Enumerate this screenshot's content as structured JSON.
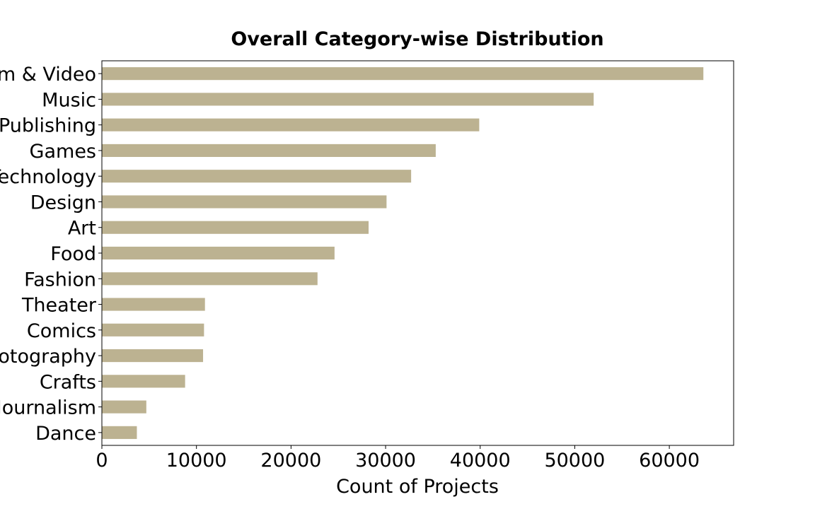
{
  "chart_data": {
    "type": "bar",
    "orientation": "horizontal",
    "title": "Overall Category-wise Distribution",
    "xlabel": "Count of Projects",
    "ylabel": "",
    "categories": [
      "Film & Video",
      "Music",
      "Publishing",
      "Games",
      "Technology",
      "Design",
      "Art",
      "Food",
      "Fashion",
      "Theater",
      "Comics",
      "Photography",
      "Crafts",
      "Journalism",
      "Dance"
    ],
    "values": [
      63600,
      52000,
      39900,
      35300,
      32700,
      30100,
      28200,
      24600,
      22800,
      10900,
      10800,
      10700,
      8800,
      4700,
      3700
    ],
    "xlim": [
      0,
      66800
    ],
    "xticks": [
      0,
      10000,
      20000,
      30000,
      40000,
      50000,
      60000
    ],
    "bar_color": "#bcb291",
    "grid": false,
    "legend": "none"
  }
}
